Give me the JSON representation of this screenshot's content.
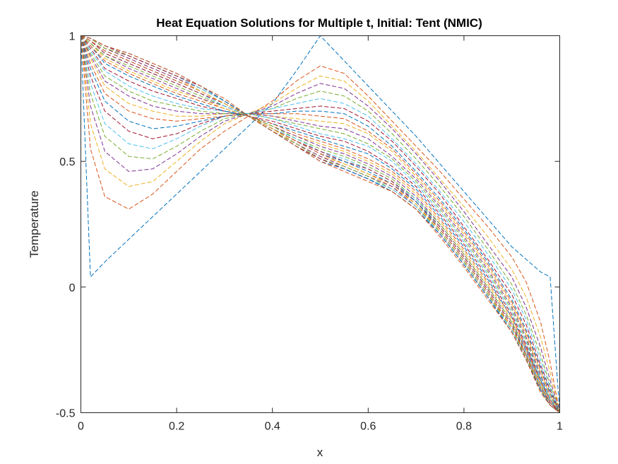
{
  "chart_data": {
    "type": "line",
    "title": "Heat Equation Solutions for Multiple t, Initial: Tent (NMIC)",
    "xlabel": "x",
    "ylabel": "Temperature",
    "xlim": [
      0,
      1
    ],
    "ylim": [
      -0.5,
      1
    ],
    "x_ticks": [
      "0",
      "0.2",
      "0.4",
      "0.6",
      "0.8",
      "1"
    ],
    "y_ticks": [
      "-0.5",
      "0",
      "0.5",
      "1"
    ],
    "grid": false,
    "legend": "none",
    "line_style": "dashed",
    "colors": [
      "#0072BD",
      "#D95319",
      "#EDB120",
      "#7E2F8E",
      "#77AC30",
      "#4DBEEE",
      "#A2142F"
    ],
    "x": [
      0,
      0.02,
      0.05,
      0.1,
      0.15,
      0.2,
      0.25,
      0.3,
      0.35,
      0.4,
      0.45,
      0.5,
      0.55,
      0.6,
      0.65,
      0.7,
      0.75,
      0.8,
      0.85,
      0.9,
      0.93,
      0.96,
      0.98,
      1
    ],
    "series": [
      {
        "values": [
          1,
          0.04,
          0.1,
          0.19,
          0.28,
          0.37,
          0.46,
          0.55,
          0.64,
          0.73,
          0.86,
          1.0,
          0.9,
          0.8,
          0.7,
          0.6,
          0.49,
          0.38,
          0.27,
          0.16,
          0.11,
          0.06,
          0.04,
          -0.5
        ]
      },
      {
        "values": [
          1,
          0.55,
          0.36,
          0.31,
          0.37,
          0.46,
          0.55,
          0.62,
          0.68,
          0.74,
          0.82,
          0.88,
          0.85,
          0.76,
          0.66,
          0.56,
          0.46,
          0.35,
          0.24,
          0.12,
          0.02,
          -0.14,
          -0.3,
          -0.5
        ]
      },
      {
        "values": [
          1,
          0.65,
          0.47,
          0.4,
          0.42,
          0.5,
          0.58,
          0.65,
          0.69,
          0.73,
          0.79,
          0.84,
          0.82,
          0.74,
          0.64,
          0.54,
          0.43,
          0.32,
          0.2,
          0.07,
          -0.04,
          -0.2,
          -0.34,
          -0.5
        ]
      },
      {
        "values": [
          1,
          0.72,
          0.54,
          0.46,
          0.47,
          0.53,
          0.6,
          0.66,
          0.69,
          0.72,
          0.77,
          0.81,
          0.79,
          0.72,
          0.63,
          0.53,
          0.42,
          0.3,
          0.17,
          0.04,
          -0.08,
          -0.24,
          -0.37,
          -0.5
        ]
      },
      {
        "values": [
          1,
          0.77,
          0.6,
          0.52,
          0.51,
          0.56,
          0.62,
          0.67,
          0.69,
          0.71,
          0.75,
          0.78,
          0.76,
          0.7,
          0.61,
          0.51,
          0.4,
          0.28,
          0.15,
          0.01,
          -0.11,
          -0.27,
          -0.39,
          -0.5
        ]
      },
      {
        "values": [
          1,
          0.81,
          0.65,
          0.57,
          0.55,
          0.59,
          0.64,
          0.68,
          0.69,
          0.71,
          0.73,
          0.75,
          0.73,
          0.68,
          0.59,
          0.49,
          0.38,
          0.26,
          0.13,
          -0.01,
          -0.13,
          -0.29,
          -0.4,
          -0.5
        ]
      },
      {
        "values": [
          1,
          0.84,
          0.7,
          0.62,
          0.59,
          0.61,
          0.65,
          0.68,
          0.69,
          0.7,
          0.71,
          0.72,
          0.71,
          0.66,
          0.58,
          0.48,
          0.37,
          0.24,
          0.11,
          -0.03,
          -0.15,
          -0.31,
          -0.41,
          -0.5
        ]
      },
      {
        "values": [
          1,
          0.87,
          0.74,
          0.66,
          0.63,
          0.64,
          0.66,
          0.68,
          0.69,
          0.69,
          0.7,
          0.7,
          0.69,
          0.64,
          0.56,
          0.46,
          0.35,
          0.23,
          0.1,
          -0.05,
          -0.17,
          -0.32,
          -0.42,
          -0.5
        ]
      },
      {
        "values": [
          1,
          0.89,
          0.77,
          0.7,
          0.67,
          0.66,
          0.67,
          0.68,
          0.69,
          0.69,
          0.69,
          0.68,
          0.67,
          0.62,
          0.55,
          0.45,
          0.34,
          0.22,
          0.09,
          -0.06,
          -0.18,
          -0.33,
          -0.43,
          -0.5
        ]
      },
      {
        "values": [
          1,
          0.91,
          0.8,
          0.73,
          0.7,
          0.68,
          0.68,
          0.69,
          0.69,
          0.68,
          0.67,
          0.66,
          0.65,
          0.61,
          0.54,
          0.44,
          0.33,
          0.21,
          0.08,
          -0.07,
          -0.19,
          -0.34,
          -0.43,
          -0.5
        ]
      },
      {
        "values": [
          1,
          0.92,
          0.82,
          0.76,
          0.72,
          0.7,
          0.69,
          0.69,
          0.69,
          0.68,
          0.66,
          0.64,
          0.63,
          0.59,
          0.52,
          0.43,
          0.32,
          0.2,
          0.07,
          -0.08,
          -0.2,
          -0.35,
          -0.44,
          -0.5
        ]
      },
      {
        "values": [
          1,
          0.93,
          0.84,
          0.78,
          0.74,
          0.72,
          0.7,
          0.69,
          0.69,
          0.67,
          0.65,
          0.63,
          0.61,
          0.57,
          0.51,
          0.42,
          0.31,
          0.19,
          0.06,
          -0.09,
          -0.21,
          -0.36,
          -0.44,
          -0.5
        ]
      },
      {
        "values": [
          1,
          0.94,
          0.86,
          0.8,
          0.76,
          0.73,
          0.71,
          0.7,
          0.69,
          0.67,
          0.64,
          0.61,
          0.59,
          0.56,
          0.5,
          0.41,
          0.3,
          0.18,
          0.05,
          -0.1,
          -0.22,
          -0.36,
          -0.44,
          -0.5
        ]
      },
      {
        "values": [
          1,
          0.95,
          0.87,
          0.82,
          0.78,
          0.75,
          0.72,
          0.7,
          0.68,
          0.66,
          0.63,
          0.6,
          0.58,
          0.54,
          0.48,
          0.4,
          0.29,
          0.17,
          0.04,
          -0.11,
          -0.23,
          -0.37,
          -0.45,
          -0.5
        ]
      },
      {
        "values": [
          1,
          0.96,
          0.89,
          0.84,
          0.8,
          0.76,
          0.73,
          0.7,
          0.68,
          0.65,
          0.62,
          0.59,
          0.56,
          0.53,
          0.47,
          0.39,
          0.28,
          0.16,
          0.03,
          -0.12,
          -0.24,
          -0.37,
          -0.45,
          -0.5
        ]
      },
      {
        "values": [
          1,
          0.96,
          0.9,
          0.85,
          0.81,
          0.77,
          0.74,
          0.71,
          0.68,
          0.65,
          0.61,
          0.58,
          0.55,
          0.51,
          0.46,
          0.38,
          0.27,
          0.15,
          0.02,
          -0.12,
          -0.24,
          -0.38,
          -0.45,
          -0.5
        ]
      },
      {
        "values": [
          1,
          0.97,
          0.91,
          0.86,
          0.82,
          0.78,
          0.75,
          0.71,
          0.68,
          0.64,
          0.6,
          0.57,
          0.54,
          0.5,
          0.45,
          0.37,
          0.26,
          0.14,
          0.01,
          -0.13,
          -0.25,
          -0.38,
          -0.46,
          -0.5
        ]
      },
      {
        "values": [
          1,
          0.97,
          0.92,
          0.87,
          0.83,
          0.79,
          0.75,
          0.72,
          0.68,
          0.64,
          0.6,
          0.56,
          0.53,
          0.49,
          0.44,
          0.36,
          0.25,
          0.13,
          0.0,
          -0.14,
          -0.25,
          -0.39,
          -0.46,
          -0.5
        ]
      },
      {
        "values": [
          1,
          0.97,
          0.92,
          0.88,
          0.84,
          0.8,
          0.76,
          0.72,
          0.68,
          0.64,
          0.59,
          0.55,
          0.52,
          0.48,
          0.43,
          0.35,
          0.25,
          0.13,
          0.0,
          -0.14,
          -0.26,
          -0.39,
          -0.46,
          -0.5
        ]
      },
      {
        "values": [
          1,
          0.98,
          0.93,
          0.89,
          0.85,
          0.81,
          0.77,
          0.72,
          0.68,
          0.63,
          0.59,
          0.54,
          0.51,
          0.47,
          0.42,
          0.35,
          0.24,
          0.12,
          -0.01,
          -0.15,
          -0.26,
          -0.39,
          -0.46,
          -0.5
        ]
      },
      {
        "values": [
          1,
          0.98,
          0.93,
          0.89,
          0.85,
          0.81,
          0.77,
          0.73,
          0.68,
          0.63,
          0.58,
          0.54,
          0.5,
          0.47,
          0.42,
          0.34,
          0.24,
          0.12,
          -0.01,
          -0.15,
          -0.27,
          -0.4,
          -0.46,
          -0.5
        ]
      },
      {
        "values": [
          1,
          0.98,
          0.94,
          0.9,
          0.86,
          0.82,
          0.78,
          0.73,
          0.68,
          0.63,
          0.58,
          0.53,
          0.5,
          0.46,
          0.41,
          0.34,
          0.23,
          0.11,
          -0.02,
          -0.16,
          -0.27,
          -0.4,
          -0.47,
          -0.5
        ]
      },
      {
        "values": [
          1,
          0.98,
          0.94,
          0.9,
          0.86,
          0.82,
          0.78,
          0.73,
          0.68,
          0.63,
          0.58,
          0.53,
          0.49,
          0.45,
          0.41,
          0.33,
          0.23,
          0.11,
          -0.02,
          -0.16,
          -0.27,
          -0.4,
          -0.47,
          -0.5
        ]
      },
      {
        "values": [
          1,
          0.99,
          0.95,
          0.91,
          0.87,
          0.83,
          0.78,
          0.73,
          0.68,
          0.63,
          0.57,
          0.52,
          0.49,
          0.45,
          0.4,
          0.33,
          0.22,
          0.1,
          -0.03,
          -0.16,
          -0.28,
          -0.4,
          -0.47,
          -0.5
        ]
      },
      {
        "values": [
          1,
          0.99,
          0.95,
          0.91,
          0.87,
          0.83,
          0.79,
          0.74,
          0.68,
          0.62,
          0.57,
          0.52,
          0.48,
          0.44,
          0.4,
          0.32,
          0.22,
          0.1,
          -0.03,
          -0.17,
          -0.28,
          -0.41,
          -0.47,
          -0.5
        ]
      },
      {
        "values": [
          1,
          0.99,
          0.95,
          0.92,
          0.88,
          0.84,
          0.79,
          0.74,
          0.68,
          0.62,
          0.57,
          0.51,
          0.48,
          0.44,
          0.39,
          0.32,
          0.22,
          0.1,
          -0.03,
          -0.17,
          -0.28,
          -0.41,
          -0.47,
          -0.5
        ]
      },
      {
        "values": [
          1,
          0.99,
          0.96,
          0.92,
          0.88,
          0.84,
          0.79,
          0.74,
          0.68,
          0.62,
          0.56,
          0.51,
          0.47,
          0.43,
          0.39,
          0.32,
          0.21,
          0.09,
          -0.04,
          -0.17,
          -0.29,
          -0.41,
          -0.47,
          -0.5
        ]
      },
      {
        "values": [
          1,
          0.99,
          0.96,
          0.92,
          0.88,
          0.84,
          0.8,
          0.74,
          0.68,
          0.62,
          0.56,
          0.51,
          0.47,
          0.43,
          0.38,
          0.31,
          0.21,
          0.09,
          -0.04,
          -0.18,
          -0.29,
          -0.41,
          -0.47,
          -0.5
        ]
      },
      {
        "values": [
          1,
          0.99,
          0.96,
          0.93,
          0.89,
          0.85,
          0.8,
          0.74,
          0.68,
          0.62,
          0.56,
          0.5,
          0.47,
          0.43,
          0.38,
          0.31,
          0.21,
          0.09,
          -0.04,
          -0.18,
          -0.29,
          -0.41,
          -0.47,
          -0.5
        ]
      },
      {
        "values": [
          1,
          0.99,
          0.96,
          0.93,
          0.89,
          0.85,
          0.8,
          0.75,
          0.68,
          0.62,
          0.56,
          0.5,
          0.46,
          0.42,
          0.38,
          0.31,
          0.2,
          0.08,
          -0.05,
          -0.18,
          -0.29,
          -0.42,
          -0.47,
          -0.5
        ]
      }
    ]
  }
}
